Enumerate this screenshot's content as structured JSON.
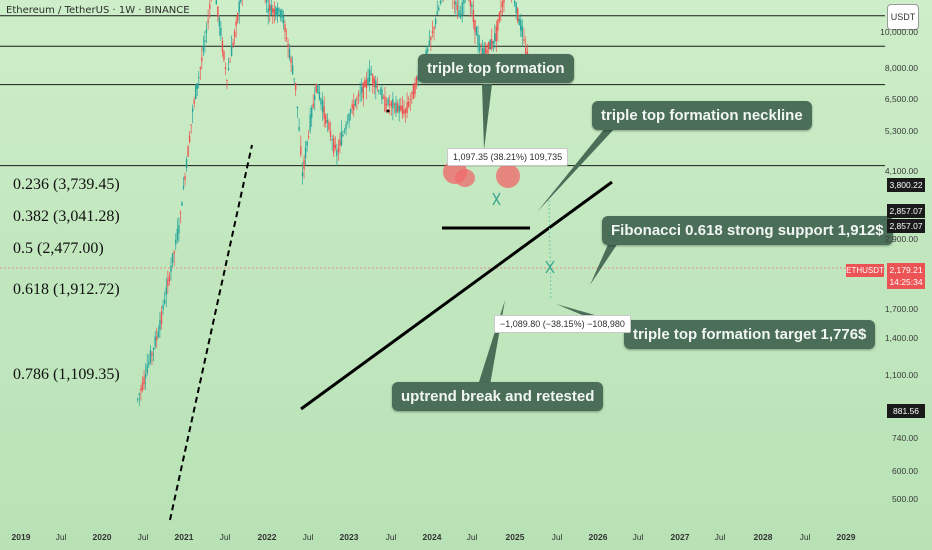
{
  "header": {
    "title": "Ethereum / TetherUS · 1W · BINANCE",
    "currency_button": "USDT"
  },
  "fib_levels": [
    {
      "label": "0.236 (3,739.45)",
      "price": 3739.45
    },
    {
      "label": "0.382 (3,041.28)",
      "price": 3041.28
    },
    {
      "label": "0.5 (2,477.00)",
      "price": 2477.0
    },
    {
      "label": "0.618 (1,912.72)",
      "price": 1912.72
    },
    {
      "label": "0.786 (1,109.35)",
      "price": 1109.35
    }
  ],
  "annotations": {
    "triple_top": "triple top formation",
    "neckline": "triple top formation neckline",
    "fib_support": "Fibonacci 0.618 strong support 1,912$",
    "target": "triple top formation target 1,776$",
    "uptrend": "uptrend break and retested",
    "measure_up": "1,097.35 (38.21%) 109,735",
    "measure_down": "−1,089.80 (−38.15%) −108,980"
  },
  "y_axis": {
    "ticks": [
      "10,000.00",
      "8,000.00",
      "6,500.00",
      "5,300.00",
      "4,100.00",
      "2,900.00",
      "1,700.00",
      "1,400.00",
      "1,100.00",
      "740.00",
      "600.00",
      "500.00"
    ],
    "badges": [
      {
        "text": "3,800.22",
        "type": "dark"
      },
      {
        "text": "2,857.07",
        "type": "dark"
      },
      {
        "text": "2,857.07",
        "type": "dark"
      },
      {
        "text": "2,179.21",
        "type": "red"
      },
      {
        "text": "14:25:34",
        "type": "red"
      },
      {
        "text": "881.56",
        "type": "dark"
      }
    ],
    "ticker": "ETHUSDT"
  },
  "x_axis": {
    "ticks": [
      {
        "label": "2019",
        "bold": true
      },
      {
        "label": "Jul",
        "bold": false
      },
      {
        "label": "2020",
        "bold": true
      },
      {
        "label": "Jul",
        "bold": false
      },
      {
        "label": "2021",
        "bold": true
      },
      {
        "label": "Jul",
        "bold": false
      },
      {
        "label": "2022",
        "bold": true
      },
      {
        "label": "Jul",
        "bold": false
      },
      {
        "label": "2023",
        "bold": true
      },
      {
        "label": "Jul",
        "bold": false
      },
      {
        "label": "2024",
        "bold": true
      },
      {
        "label": "Jul",
        "bold": false
      },
      {
        "label": "2025",
        "bold": true
      },
      {
        "label": "Jul",
        "bold": false
      },
      {
        "label": "2026",
        "bold": true
      },
      {
        "label": "Jul",
        "bold": false
      },
      {
        "label": "2027",
        "bold": true
      },
      {
        "label": "Jul",
        "bold": false
      },
      {
        "label": "2028",
        "bold": true
      },
      {
        "label": "Jul",
        "bold": false
      },
      {
        "label": "2029",
        "bold": true
      }
    ]
  },
  "chart_data": {
    "type": "candlestick",
    "symbol": "ETHUSDT",
    "exchange": "BINANCE",
    "interval": "1W",
    "last_price": 2179.21,
    "x_range": [
      "2019-01",
      "2029-03"
    ],
    "scale": "log",
    "series": [
      {
        "date": "2020-06",
        "close": 230
      },
      {
        "date": "2020-09",
        "close": 360
      },
      {
        "date": "2020-12",
        "close": 730
      },
      {
        "date": "2021-02",
        "close": 1600
      },
      {
        "date": "2021-04",
        "close": 2700
      },
      {
        "date": "2021-05",
        "close": 3900
      },
      {
        "date": "2021-07",
        "close": 2000
      },
      {
        "date": "2021-09",
        "close": 3400
      },
      {
        "date": "2021-11",
        "close": 4800
      },
      {
        "date": "2022-01",
        "close": 3200
      },
      {
        "date": "2022-03",
        "close": 3100
      },
      {
        "date": "2022-05",
        "close": 1900
      },
      {
        "date": "2022-06",
        "close": 1050
      },
      {
        "date": "2022-08",
        "close": 1900
      },
      {
        "date": "2022-11",
        "close": 1200
      },
      {
        "date": "2023-01",
        "close": 1600
      },
      {
        "date": "2023-04",
        "close": 2050
      },
      {
        "date": "2023-06",
        "close": 1700
      },
      {
        "date": "2023-09",
        "close": 1600
      },
      {
        "date": "2023-12",
        "close": 2300
      },
      {
        "date": "2024-03",
        "close": 3900
      },
      {
        "date": "2024-05",
        "close": 3000
      },
      {
        "date": "2024-06",
        "close": 3800
      },
      {
        "date": "2024-08",
        "close": 2300
      },
      {
        "date": "2024-10",
        "close": 2600
      },
      {
        "date": "2024-12",
        "close": 4000
      },
      {
        "date": "2025-02",
        "close": 2700
      },
      {
        "date": "2025-03",
        "close": 2179.21
      }
    ]
  }
}
